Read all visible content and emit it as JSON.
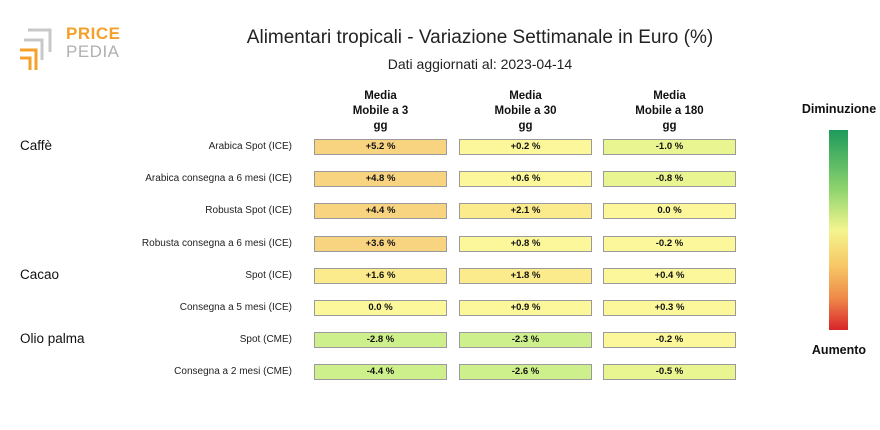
{
  "logo": {
    "word1": "PRICE",
    "word2": "PEDIA"
  },
  "title": "Alimentari tropicali - Variazione Settimanale in Euro (%)",
  "subtitle": "Dati aggiornati al: 2023-04-14",
  "colors": {
    "strong_up": "#f8d380",
    "mild_up": "#fbeb8c",
    "neutral": "#fbf79a",
    "mild_down": "#e9f590",
    "down": "#cdef8c"
  },
  "scale": {
    "top_label": "Diminuzione",
    "bottom_label": "Aumento"
  },
  "chart_data": {
    "type": "table",
    "columns": [
      {
        "lines": [
          "Media",
          "Mobile a 3",
          "gg"
        ]
      },
      {
        "lines": [
          "Media",
          "Mobile a 30",
          "gg"
        ]
      },
      {
        "lines": [
          "Media",
          "Mobile a 180",
          "gg"
        ]
      }
    ],
    "groups": [
      {
        "name": "Caffè",
        "first_row": 0
      },
      {
        "name": "Cacao",
        "first_row": 4
      },
      {
        "name": "Olio palma",
        "first_row": 6
      }
    ],
    "rows": [
      {
        "label": "Arabica Spot (ICE)",
        "values": [
          5.2,
          0.2,
          -1.0
        ],
        "text": [
          "+5.2 %",
          "+0.2 %",
          "-1.0 %"
        ]
      },
      {
        "label": "Arabica consegna a 6 mesi (ICE)",
        "values": [
          4.8,
          0.6,
          -0.8
        ],
        "text": [
          "+4.8 %",
          "+0.6 %",
          "-0.8 %"
        ]
      },
      {
        "label": "Robusta Spot (ICE)",
        "values": [
          4.4,
          2.1,
          0.0
        ],
        "text": [
          "+4.4 %",
          "+2.1 %",
          "0.0 %"
        ]
      },
      {
        "label": "Robusta consegna a 6 mesi (ICE)",
        "values": [
          3.6,
          0.8,
          -0.2
        ],
        "text": [
          "+3.6 %",
          "+0.8 %",
          "-0.2 %"
        ]
      },
      {
        "label": "Spot (ICE)",
        "values": [
          1.6,
          1.8,
          0.4
        ],
        "text": [
          "+1.6 %",
          "+1.8 %",
          "+0.4 %"
        ]
      },
      {
        "label": "Consegna a 5 mesi (ICE)",
        "values": [
          0.0,
          0.9,
          0.3
        ],
        "text": [
          "0.0 %",
          "+0.9 %",
          "+0.3 %"
        ]
      },
      {
        "label": "Spot (CME)",
        "values": [
          -2.8,
          -2.3,
          -0.2
        ],
        "text": [
          "-2.8 %",
          "-2.3 %",
          "-0.2 %"
        ]
      },
      {
        "label": "Consegna a 2 mesi (CME)",
        "values": [
          -4.4,
          -2.6,
          -0.5
        ],
        "text": [
          "-4.4 %",
          "-2.6 %",
          "-0.5 %"
        ]
      }
    ]
  }
}
